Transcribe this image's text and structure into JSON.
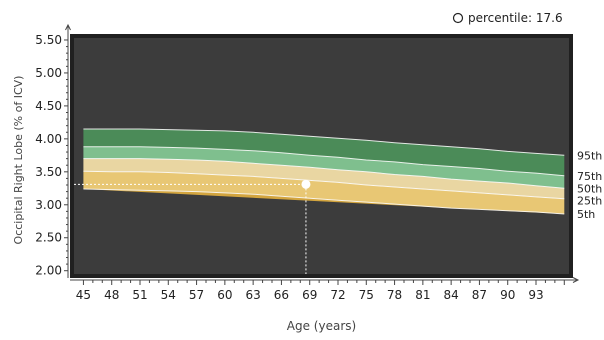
{
  "chart_data": {
    "type": "area",
    "title": "",
    "xlabel": "Age (years)",
    "ylabel": "Occipital Right Lobe (% of ICV)",
    "xlim": [
      44,
      96.5
    ],
    "ylim": [
      1.95,
      5.53
    ],
    "x_ticks": [
      45,
      48,
      51,
      54,
      57,
      60,
      63,
      66,
      69,
      72,
      75,
      78,
      81,
      84,
      87,
      90,
      93
    ],
    "x_tick_labels": [
      "45",
      "48",
      "51",
      "54",
      "57",
      "60",
      "63",
      "66",
      "69",
      "72",
      "75",
      "78",
      "81",
      "84",
      "87",
      "90",
      "93"
    ],
    "y_ticks": [
      2.0,
      2.5,
      3.0,
      3.5,
      4.0,
      4.5,
      5.0,
      5.5
    ],
    "y_tick_labels": [
      "2.00",
      "2.50",
      "3.00",
      "3.50",
      "4.00",
      "4.50",
      "5.00",
      "5.50"
    ],
    "grid": false,
    "plot_background": "#3c3c3c",
    "frame_color": "#202020",
    "x": [
      45,
      48,
      51,
      54,
      57,
      60,
      63,
      66,
      69,
      72,
      75,
      78,
      81,
      84,
      87,
      90,
      93,
      96
    ],
    "series": [
      {
        "name": "5th",
        "color": "#d3a53f",
        "values": [
          3.24,
          3.23,
          3.22,
          3.21,
          3.2,
          3.18,
          3.16,
          3.13,
          3.1,
          3.07,
          3.04,
          3.01,
          2.98,
          2.95,
          2.93,
          2.91,
          2.89,
          2.86
        ]
      },
      {
        "name": "25th",
        "color": "#e8c774",
        "values": [
          3.51,
          3.5,
          3.5,
          3.49,
          3.47,
          3.45,
          3.43,
          3.4,
          3.37,
          3.34,
          3.3,
          3.27,
          3.24,
          3.21,
          3.18,
          3.15,
          3.12,
          3.09
        ]
      },
      {
        "name": "50th",
        "color": "#e9d6a2",
        "values": [
          3.7,
          3.7,
          3.7,
          3.69,
          3.68,
          3.66,
          3.63,
          3.6,
          3.57,
          3.53,
          3.5,
          3.46,
          3.43,
          3.39,
          3.36,
          3.33,
          3.29,
          3.25
        ]
      },
      {
        "name": "75th",
        "color": "#7fbf8e",
        "values": [
          3.88,
          3.88,
          3.88,
          3.87,
          3.86,
          3.84,
          3.82,
          3.79,
          3.75,
          3.72,
          3.68,
          3.65,
          3.61,
          3.58,
          3.55,
          3.51,
          3.48,
          3.44
        ]
      },
      {
        "name": "95th",
        "color": "#4b8b58",
        "values": [
          4.15,
          4.15,
          4.15,
          4.14,
          4.13,
          4.12,
          4.1,
          4.07,
          4.04,
          4.01,
          3.98,
          3.94,
          3.91,
          3.88,
          3.85,
          3.81,
          3.78,
          3.75
        ]
      }
    ],
    "marker": {
      "x": 68.6,
      "y": 3.31,
      "percentile_text": "percentile: 17.6",
      "color": "#ffffff",
      "guide_style": "dashed"
    },
    "legend": {
      "position": "top-right"
    }
  }
}
